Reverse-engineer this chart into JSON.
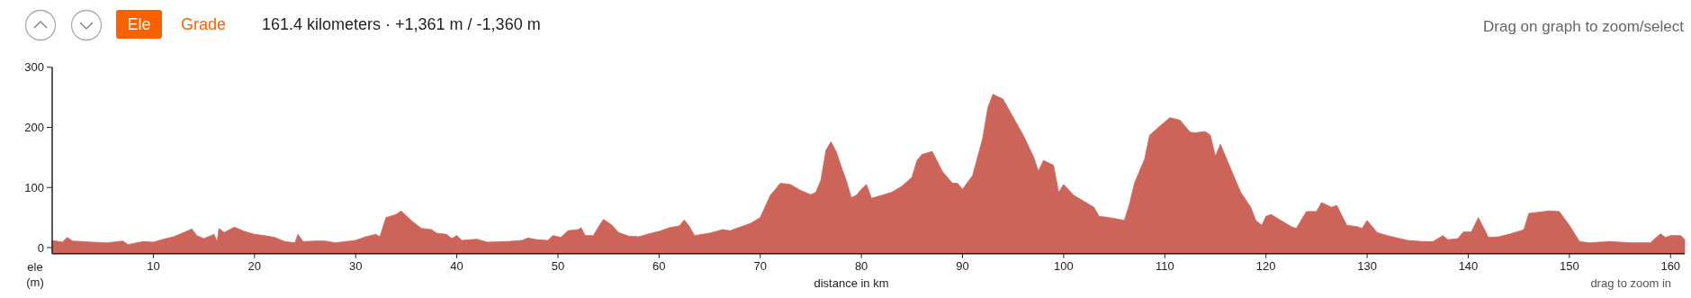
{
  "chart_data": {
    "type": "area",
    "title": "161.4 kilometers · +1,361 m / -1,360 m",
    "xlabel": "distance in km",
    "ylabel": "ele (m)",
    "annotations": [
      "Ele",
      "Grade",
      "Drag on graph to zoom/select",
      "drag to zoom in"
    ],
    "xlim": [
      0,
      161.4
    ],
    "ylim": [
      -10,
      300
    ],
    "xticks": [
      10,
      20,
      30,
      40,
      50,
      60,
      70,
      80,
      90,
      100,
      110,
      120,
      130,
      140,
      150,
      160
    ],
    "yticks": [
      0,
      100,
      200,
      300
    ],
    "grid": false,
    "series": [
      {
        "color": "#cd645a",
        "x": [
          0,
          1,
          1.5,
          2,
          4,
          5.5,
          7,
          7.5,
          9,
          10,
          11,
          12,
          13,
          13.8,
          14.3,
          15,
          16,
          16.3,
          16.5,
          17,
          18,
          19,
          20,
          21,
          22,
          23,
          24,
          24.3,
          24.8,
          26,
          27,
          28,
          30,
          31,
          32,
          32.4,
          33,
          34,
          34.5,
          35.5,
          36.5,
          37.5,
          38,
          39,
          39.5,
          40,
          40.5,
          42,
          43,
          45,
          46.5,
          47,
          48,
          49,
          49.5,
          50.3,
          51,
          52,
          52.3,
          52.7,
          53.5,
          54,
          54.5,
          55.3,
          56,
          57,
          58,
          59,
          60,
          61,
          62,
          62.5,
          63,
          63.5,
          65,
          66.3,
          67,
          68,
          69,
          70,
          71,
          72,
          73,
          74,
          75,
          75.5,
          76,
          76.5,
          77,
          77.5,
          78,
          78.5,
          79,
          79.5,
          80,
          80.5,
          81,
          82,
          83,
          84,
          85,
          85.5,
          86,
          87,
          88,
          89,
          89.5,
          90,
          91,
          92,
          92.5,
          93,
          94,
          95,
          96,
          97,
          97.5,
          98,
          99,
          99.5,
          100,
          101,
          102,
          103,
          103.5,
          104.5,
          105.5,
          106,
          106.5,
          107,
          108,
          108.5,
          109.5,
          110.5,
          111.5,
          112.5,
          113,
          114,
          114.5,
          115,
          115.5,
          116.5,
          117.5,
          118.5,
          119,
          119.6,
          120,
          120.5,
          121.5,
          122.5,
          123,
          124,
          125,
          125.5,
          126.5,
          127,
          128,
          129,
          129.5,
          130,
          131,
          132,
          134,
          135.5,
          136.5,
          137.5,
          138,
          139,
          139.5,
          140.3,
          141,
          142,
          143,
          144,
          145,
          145.5,
          146,
          147,
          148,
          149,
          150,
          151,
          152,
          154,
          156,
          158,
          159,
          159.5,
          160,
          161,
          161.4
        ],
        "values": [
          12,
          9,
          17,
          11,
          9,
          8,
          11,
          5,
          10,
          9,
          14,
          18,
          25,
          31,
          20,
          15,
          22,
          10,
          32,
          25,
          34,
          27,
          22,
          20,
          17,
          10,
          8,
          22,
          10,
          11,
          11,
          8,
          12,
          18,
          22,
          18,
          50,
          55,
          61,
          45,
          32,
          30,
          24,
          22,
          15,
          20,
          12,
          14,
          9,
          10,
          12,
          16,
          13,
          12,
          20,
          17,
          28,
          30,
          33,
          20,
          20,
          34,
          47,
          38,
          25,
          19,
          18,
          23,
          27,
          33,
          36,
          46,
          35,
          20,
          24,
          30,
          28,
          34,
          40,
          50,
          87,
          107,
          105,
          95,
          88,
          92,
          112,
          162,
          176,
          160,
          135,
          112,
          83,
          87,
          97,
          105,
          82,
          87,
          92,
          102,
          117,
          145,
          155,
          160,
          127,
          107,
          107,
          97,
          120,
          182,
          232,
          255,
          247,
          217,
          187,
          152,
          127,
          145,
          137,
          92,
          105,
          87,
          77,
          67,
          52,
          50,
          47,
          45,
          72,
          107,
          147,
          187,
          202,
          216,
          212,
          192,
          191,
          193,
          187,
          152,
          172,
          132,
          92,
          67,
          45,
          37,
          52,
          55,
          45,
          35,
          32,
          60,
          60,
          75,
          67,
          70,
          37,
          35,
          32,
          45,
          25,
          20,
          12,
          10,
          10,
          20,
          13,
          15,
          26,
          26,
          50,
          17,
          18,
          22,
          27,
          30,
          57,
          59,
          61,
          60,
          37,
          10,
          8,
          10,
          8,
          8,
          23,
          17,
          20,
          20,
          13
        ]
      }
    ]
  }
}
